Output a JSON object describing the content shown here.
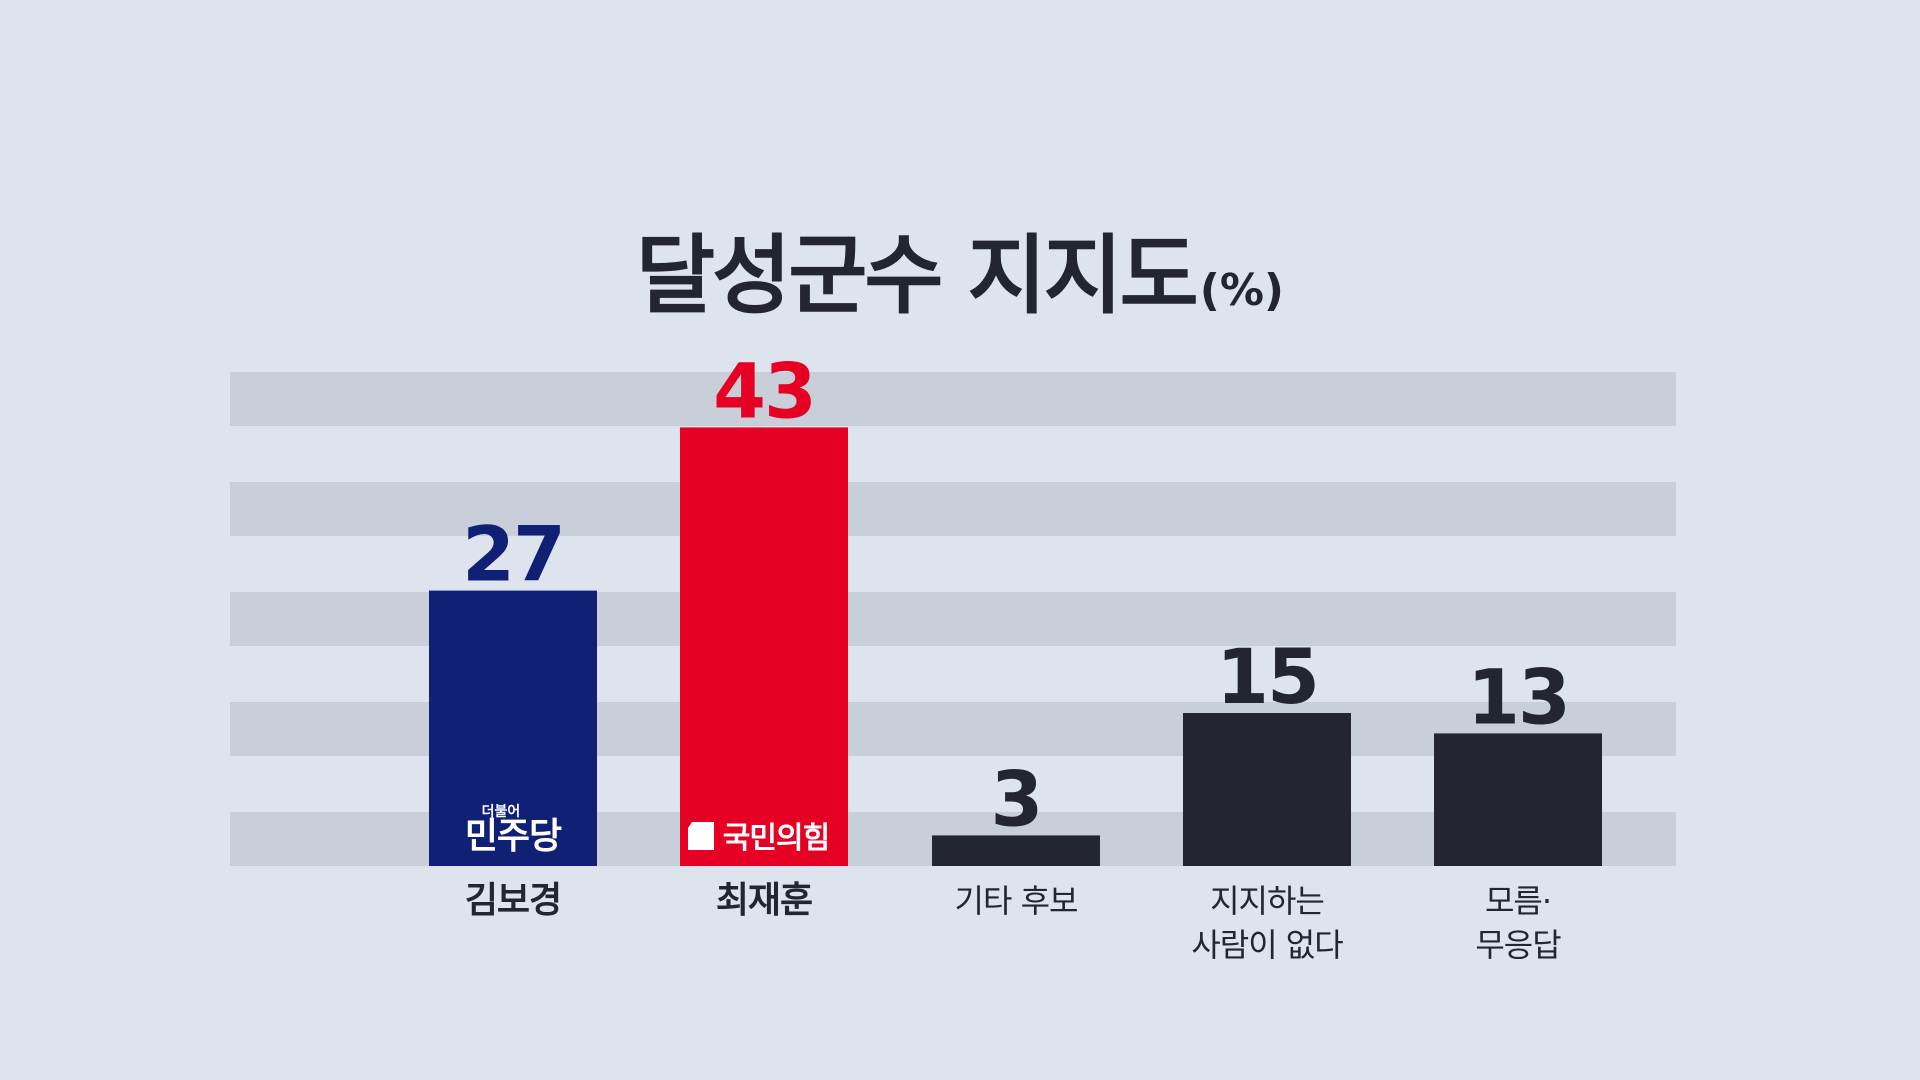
{
  "chart_data": {
    "type": "bar",
    "title": "달성군수 지지도",
    "unit": "(%)",
    "ylim": [
      0,
      50
    ],
    "grid": true,
    "categories": [
      {
        "lines": [
          "김보경"
        ],
        "bold": true
      },
      {
        "lines": [
          "최재훈"
        ],
        "bold": true
      },
      {
        "lines": [
          "기타 후보"
        ],
        "bold": false
      },
      {
        "lines": [
          "지지하는",
          "사람이 없다"
        ],
        "bold": false
      },
      {
        "lines": [
          "모름·",
          "무응답"
        ],
        "bold": false
      }
    ],
    "values": [
      27,
      43,
      3,
      15,
      13
    ],
    "colors": [
      "#102075",
      "#e60023",
      "#23252f",
      "#23252f",
      "#23252f"
    ],
    "party_labels": [
      {
        "small": "더불어",
        "text": "민주당"
      },
      {
        "small": "",
        "text": "국민의힘"
      },
      null,
      null,
      null
    ],
    "grid_color": "#c8cfd9",
    "text_color": "#23252f"
  }
}
